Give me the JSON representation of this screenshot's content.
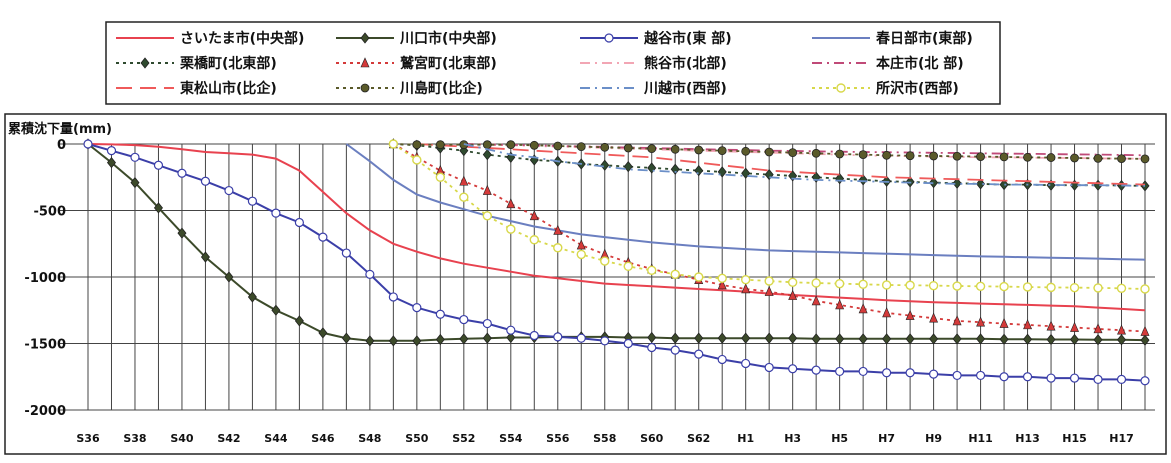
{
  "chart_data": {
    "type": "line",
    "ylabel": "累積沈下量(mm)",
    "ylim": [
      -2000,
      0
    ],
    "yticks": [
      0,
      -500,
      -1000,
      -1500,
      -2000
    ],
    "grid": "vertical lines at every year, horizontal at every 500",
    "legend_placement": "top",
    "x": [
      "S36",
      "S37",
      "S38",
      "S39",
      "S40",
      "S41",
      "S42",
      "S43",
      "S44",
      "S45",
      "S46",
      "S47",
      "S48",
      "S49",
      "S50",
      "S51",
      "S52",
      "S53",
      "S54",
      "S55",
      "S56",
      "S57",
      "S58",
      "S59",
      "S60",
      "S61",
      "S62",
      "S63",
      "H1",
      "H2",
      "H3",
      "H4",
      "H5",
      "H6",
      "H7",
      "H8",
      "H9",
      "H10",
      "H11",
      "H12",
      "H13",
      "H14",
      "H15",
      "H16",
      "H17",
      "H18"
    ],
    "xticklabels": [
      "S36",
      "S38",
      "S40",
      "S42",
      "S44",
      "S46",
      "S48",
      "S50",
      "S52",
      "S54",
      "S56",
      "S58",
      "S60",
      "S62",
      "H1",
      "H3",
      "H5",
      "H7",
      "H9",
      "H11",
      "H13",
      "H15",
      "H17"
    ],
    "series": [
      {
        "name": "さいたま市(中央部)",
        "color": "#e8424f",
        "dash": "solid",
        "marker": "none",
        "values": [
          0,
          -3,
          -8,
          -20,
          -40,
          -60,
          -70,
          -80,
          -110,
          -200,
          -360,
          -520,
          -650,
          -750,
          -810,
          -860,
          -900,
          -930,
          -960,
          -990,
          -1010,
          -1030,
          -1050,
          -1060,
          -1070,
          -1080,
          -1090,
          -1100,
          -1110,
          -1125,
          -1135,
          -1145,
          -1155,
          -1165,
          -1175,
          -1182,
          -1190,
          -1195,
          -1200,
          -1205,
          -1210,
          -1215,
          -1220,
          -1230,
          -1240,
          -1250
        ]
      },
      {
        "name": "川口市(中央部)",
        "color": "#3c4a2a",
        "dash": "solid",
        "marker": "diamond",
        "values": [
          0,
          -140,
          -290,
          -480,
          -670,
          -850,
          -1000,
          -1150,
          -1250,
          -1330,
          -1420,
          -1460,
          -1480,
          -1480,
          -1480,
          -1470,
          -1465,
          -1460,
          -1455,
          -1455,
          -1450,
          -1450,
          -1450,
          -1455,
          -1455,
          -1460,
          -1460,
          -1460,
          -1460,
          -1460,
          -1460,
          -1465,
          -1465,
          -1465,
          -1465,
          -1465,
          -1465,
          -1465,
          -1465,
          -1468,
          -1468,
          -1470,
          -1470,
          -1472,
          -1472,
          -1475
        ]
      },
      {
        "name": "越谷市(東 部)",
        "color": "#3b3fa8",
        "dash": "solid",
        "marker": "circle",
        "values": [
          0,
          -50,
          -100,
          -160,
          -220,
          -280,
          -350,
          -430,
          -520,
          -590,
          -700,
          -820,
          -980,
          -1150,
          -1230,
          -1280,
          -1320,
          -1350,
          -1400,
          -1440,
          -1450,
          -1460,
          -1480,
          -1500,
          -1530,
          -1550,
          -1580,
          -1620,
          -1650,
          -1680,
          -1690,
          -1700,
          -1710,
          -1710,
          -1720,
          -1720,
          -1730,
          -1740,
          -1740,
          -1750,
          -1750,
          -1760,
          -1760,
          -1770,
          -1770,
          -1780
        ]
      },
      {
        "name": "春日部市(東部)",
        "color": "#6b7fc0",
        "dash": "solid",
        "marker": "none",
        "values": [
          null,
          null,
          null,
          null,
          null,
          null,
          null,
          null,
          null,
          null,
          null,
          0,
          -130,
          -270,
          -380,
          -440,
          -490,
          -540,
          -580,
          -620,
          -650,
          -680,
          -700,
          -720,
          -740,
          -755,
          -770,
          -780,
          -790,
          -800,
          -805,
          -810,
          -815,
          -820,
          -825,
          -830,
          -835,
          -840,
          -845,
          -848,
          -852,
          -855,
          -858,
          -862,
          -866,
          -870
        ]
      },
      {
        "name": "栗橋町(北東部)",
        "color": "#2f4a2f",
        "dash": "dotted",
        "marker": "diamond",
        "values": [
          null,
          null,
          null,
          null,
          null,
          null,
          null,
          null,
          null,
          null,
          null,
          null,
          null,
          0,
          -10,
          -30,
          -50,
          -80,
          -100,
          -120,
          -130,
          -150,
          -160,
          -170,
          -180,
          -190,
          -200,
          -210,
          -220,
          -230,
          -240,
          -250,
          -260,
          -270,
          -280,
          -285,
          -290,
          -295,
          -300,
          -305,
          -305,
          -310,
          -310,
          -310,
          -312,
          -315
        ]
      },
      {
        "name": "鷲宮町(北東部)",
        "color": "#d43a3a",
        "dash": "dotted",
        "marker": "triangle",
        "values": [
          null,
          null,
          null,
          null,
          null,
          null,
          null,
          null,
          null,
          null,
          null,
          null,
          null,
          0,
          -100,
          -200,
          -280,
          -350,
          -450,
          -540,
          -650,
          -760,
          -830,
          -890,
          -940,
          -980,
          -1020,
          -1060,
          -1090,
          -1110,
          -1140,
          -1180,
          -1210,
          -1240,
          -1270,
          -1290,
          -1310,
          -1330,
          -1340,
          -1350,
          -1360,
          -1370,
          -1380,
          -1390,
          -1400,
          -1410
        ]
      },
      {
        "name": "熊谷市(北部)",
        "color": "#f2a6b4",
        "dash": "dashdot",
        "marker": "none",
        "values": [
          null,
          null,
          null,
          null,
          null,
          null,
          null,
          null,
          null,
          null,
          null,
          null,
          null,
          null,
          null,
          null,
          0,
          -5,
          -10,
          -15,
          -20,
          -25,
          -30,
          -35,
          -40,
          -45,
          -50,
          -55,
          -60,
          -65,
          -70,
          -75,
          -80,
          -85,
          -90,
          -92,
          -95,
          -97,
          -100,
          -100,
          -102,
          -105,
          -105,
          -108,
          -110,
          -110
        ]
      },
      {
        "name": "本庄市(北 部)",
        "color": "#c04a78",
        "dash": "dashdot",
        "marker": "none",
        "values": [
          null,
          null,
          null,
          null,
          null,
          null,
          null,
          null,
          null,
          null,
          null,
          null,
          null,
          null,
          null,
          null,
          0,
          -3,
          -6,
          -10,
          -14,
          -18,
          -22,
          -26,
          -30,
          -34,
          -38,
          -42,
          -46,
          -50,
          -52,
          -55,
          -58,
          -60,
          -62,
          -64,
          -66,
          -68,
          -70,
          -72,
          -74,
          -76,
          -78,
          -80,
          -82,
          -85
        ]
      },
      {
        "name": "東松山市(比企)",
        "color": "#ef5a5a",
        "dash": "longdash",
        "marker": "none",
        "values": [
          null,
          null,
          null,
          null,
          null,
          null,
          null,
          null,
          null,
          null,
          null,
          null,
          null,
          null,
          0,
          -10,
          -20,
          -30,
          -40,
          -50,
          -60,
          -70,
          -80,
          -90,
          -100,
          -120,
          -140,
          -160,
          -180,
          -200,
          -210,
          -220,
          -230,
          -240,
          -250,
          -255,
          -260,
          -265,
          -270,
          -275,
          -280,
          -285,
          -290,
          -295,
          -300,
          -305
        ]
      },
      {
        "name": "川島町(比企)",
        "color": "#5a5a2a",
        "dash": "dotted",
        "marker": "circle-filled",
        "values": [
          null,
          null,
          null,
          null,
          null,
          null,
          null,
          null,
          null,
          null,
          null,
          null,
          null,
          0,
          -5,
          -5,
          -5,
          -5,
          -5,
          -10,
          -15,
          -20,
          -25,
          -30,
          -35,
          -40,
          -45,
          -50,
          -55,
          -60,
          -65,
          -70,
          -75,
          -80,
          -85,
          -88,
          -90,
          -92,
          -95,
          -97,
          -100,
          -102,
          -105,
          -108,
          -110,
          -112
        ]
      },
      {
        "name": "川越市(西部)",
        "color": "#6b8fc8",
        "dash": "dashdot",
        "marker": "none",
        "values": [
          null,
          null,
          null,
          null,
          null,
          null,
          null,
          null,
          null,
          null,
          null,
          null,
          null,
          null,
          null,
          null,
          0,
          -40,
          -80,
          -100,
          -130,
          -150,
          -170,
          -190,
          -200,
          -210,
          -220,
          -230,
          -240,
          -250,
          -260,
          -270,
          -275,
          -280,
          -285,
          -290,
          -295,
          -300,
          -300,
          -305,
          -305,
          -308,
          -310,
          -310,
          -312,
          -315
        ]
      },
      {
        "name": "所沢市(西部)",
        "color": "#d8d84a",
        "dash": "dotted",
        "marker": "circle-open",
        "values": [
          null,
          null,
          null,
          null,
          null,
          null,
          null,
          null,
          null,
          null,
          null,
          null,
          null,
          0,
          -120,
          -250,
          -400,
          -540,
          -640,
          -720,
          -780,
          -830,
          -880,
          -920,
          -950,
          -980,
          -1000,
          -1010,
          -1020,
          -1030,
          -1040,
          -1045,
          -1050,
          -1055,
          -1060,
          -1062,
          -1065,
          -1068,
          -1070,
          -1072,
          -1075,
          -1078,
          -1080,
          -1082,
          -1085,
          -1090
        ]
      }
    ]
  }
}
